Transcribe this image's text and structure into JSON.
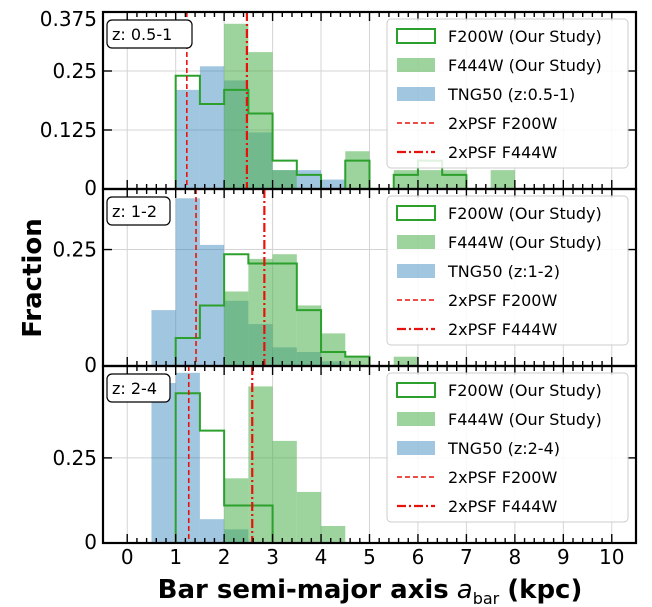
{
  "chart_data": {
    "type": "histogram",
    "xlabel": "Bar semi-major axis",
    "xlabel_symbol": "a",
    "xlabel_sub": "bar",
    "xlabel_unit": "(kpc)",
    "ylabel": "Fraction",
    "xlim": [
      -0.5,
      10.5
    ],
    "x_ticks": [
      0,
      1,
      2,
      3,
      4,
      5,
      6,
      7,
      8,
      9,
      10
    ],
    "grid": true,
    "legend_position": "upper right",
    "colors": {
      "f200": "#2ca02c",
      "f444": "#4daf4a",
      "tng": "#1f77b4",
      "psf": "#e8120c"
    },
    "panels": [
      {
        "tag": "z: 0.5-1",
        "ylim": [
          0,
          0.375
        ],
        "y_ticks": [
          0,
          0.125,
          0.25,
          0.375
        ],
        "y_tick_labels": [
          "0",
          "0.125",
          "0.25",
          "0.375"
        ],
        "legend": [
          "F200W (Our Study)",
          "F444W (Our Study)",
          "TNG50 (z:0.5-1)",
          "2xPSF F200W",
          "2xPSF F444W"
        ],
        "tng50": [
          [
            1.0,
            1.5,
            0.21
          ],
          [
            1.5,
            2.0,
            0.26
          ],
          [
            2.0,
            2.5,
            0.23
          ],
          [
            2.5,
            3.0,
            0.12
          ],
          [
            3.0,
            3.5,
            0.04
          ],
          [
            3.5,
            4.0,
            0.04
          ],
          [
            4.0,
            4.5,
            0.02
          ]
        ],
        "f444w": [
          [
            2.0,
            2.5,
            0.35
          ],
          [
            2.5,
            3.0,
            0.29
          ],
          [
            3.0,
            3.5,
            0.04
          ],
          [
            4.5,
            5.0,
            0.08
          ],
          [
            5.5,
            6.0,
            0.04
          ],
          [
            6.0,
            6.5,
            0.04
          ],
          [
            6.5,
            7.0,
            0.04
          ],
          [
            7.5,
            8.0,
            0.04
          ]
        ],
        "f200w": [
          [
            1.0,
            1.5,
            0.24
          ],
          [
            1.5,
            2.0,
            0.18
          ],
          [
            2.0,
            2.5,
            0.21
          ],
          [
            2.5,
            3.0,
            0.16
          ],
          [
            3.0,
            3.5,
            0.06
          ],
          [
            3.5,
            4.0,
            0.03
          ],
          [
            4.5,
            5.0,
            0.06
          ],
          [
            5.5,
            6.0,
            0.03
          ],
          [
            6.0,
            6.5,
            0.06
          ],
          [
            6.5,
            7.0,
            0.03
          ]
        ],
        "psf_f200w": 1.23,
        "psf_f444w": 2.47
      },
      {
        "tag": "z: 1-2",
        "ylim": [
          0,
          0.38
        ],
        "y_ticks": [
          0,
          0.25
        ],
        "y_tick_labels": [
          "0",
          "0.25"
        ],
        "legend": [
          "F200W (Our Study)",
          "F444W (Our Study)",
          "TNG50 (z:1-2)",
          "2xPSF F200W",
          "2xPSF F444W"
        ],
        "tng50": [
          [
            0.5,
            1.0,
            0.12
          ],
          [
            1.0,
            1.5,
            0.36
          ],
          [
            1.5,
            2.0,
            0.26
          ],
          [
            2.0,
            2.5,
            0.14
          ],
          [
            2.5,
            3.0,
            0.09
          ],
          [
            3.0,
            3.5,
            0.04
          ],
          [
            3.5,
            4.0,
            0.03
          ],
          [
            4.0,
            4.5,
            0.01
          ]
        ],
        "f444w": [
          [
            2.0,
            2.5,
            0.16
          ],
          [
            2.5,
            3.0,
            0.23
          ],
          [
            3.0,
            3.5,
            0.24
          ],
          [
            3.5,
            4.0,
            0.13
          ],
          [
            4.0,
            4.5,
            0.07
          ],
          [
            4.5,
            5.0,
            0.02
          ],
          [
            5.5,
            6.0,
            0.02
          ]
        ],
        "f200w": [
          [
            1.0,
            1.5,
            0.06
          ],
          [
            1.5,
            2.0,
            0.13
          ],
          [
            2.0,
            2.5,
            0.24
          ],
          [
            2.5,
            3.0,
            0.22
          ],
          [
            3.0,
            3.5,
            0.22
          ],
          [
            3.5,
            4.0,
            0.12
          ],
          [
            4.0,
            4.5,
            0.03
          ],
          [
            4.5,
            5.0,
            0.02
          ]
        ],
        "psf_f200w": 1.42,
        "psf_f444w": 2.83
      },
      {
        "tag": "z: 2-4",
        "ylim": [
          0,
          0.52
        ],
        "y_ticks": [
          0,
          0.25
        ],
        "y_tick_labels": [
          "0",
          "0.25"
        ],
        "legend": [
          "F200W (Our Study)",
          "F444W (Our Study)",
          "TNG50 (z:2-4)",
          "2xPSF F200W",
          "2xPSF F444W"
        ],
        "tng50": [
          [
            0.5,
            1.0,
            0.47
          ],
          [
            1.0,
            1.5,
            0.5
          ],
          [
            1.5,
            2.0,
            0.07
          ],
          [
            2.0,
            2.5,
            0.04
          ]
        ],
        "f444w": [
          [
            2.0,
            2.5,
            0.19
          ],
          [
            2.5,
            3.0,
            0.46
          ],
          [
            3.0,
            3.5,
            0.3
          ],
          [
            3.5,
            4.0,
            0.15
          ],
          [
            4.0,
            4.5,
            0.05
          ]
        ],
        "f200w": [
          [
            1.0,
            1.5,
            0.44
          ],
          [
            1.5,
            2.0,
            0.33
          ],
          [
            2.0,
            2.5,
            0.11
          ],
          [
            2.5,
            3.0,
            0.11
          ]
        ],
        "psf_f200w": 1.27,
        "psf_f444w": 2.58
      }
    ]
  }
}
